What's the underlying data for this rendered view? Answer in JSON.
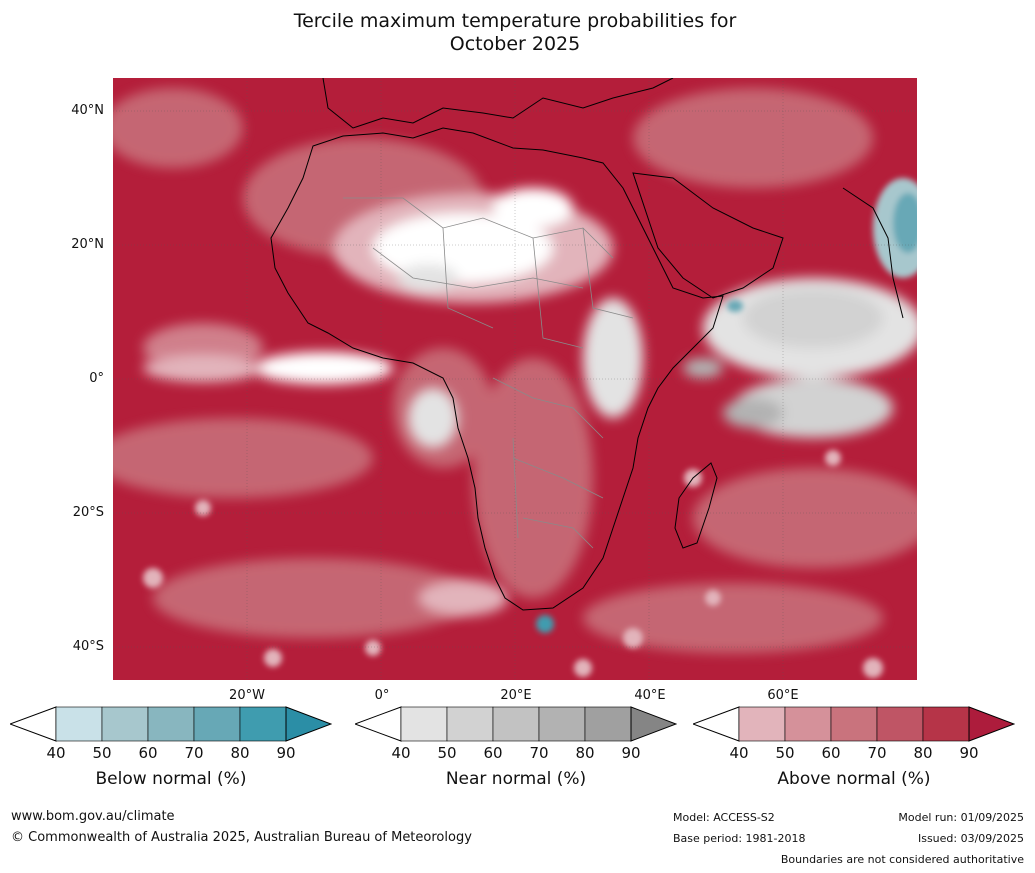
{
  "title": {
    "line1": "Tercile maximum temperature probabilities for",
    "line2": "October 2025"
  },
  "map": {
    "lat_labels": [
      "40°N",
      "20°N",
      "0°",
      "20°S",
      "40°S"
    ],
    "lon_labels": [
      "20°W",
      "0°",
      "20°E",
      "40°E",
      "60°E"
    ],
    "dominant_color": "#b41e3a"
  },
  "colorbars": [
    {
      "title": "Below normal (%)",
      "ticks": [
        "40",
        "50",
        "60",
        "70",
        "80",
        "90"
      ],
      "colors": [
        "#ffffff",
        "#c9e1e8",
        "#a7c7cd",
        "#88b6bf",
        "#67a8b6",
        "#3f9caf",
        "#2b8ea6"
      ]
    },
    {
      "title": "Near normal (%)",
      "ticks": [
        "40",
        "50",
        "60",
        "70",
        "80",
        "90"
      ],
      "colors": [
        "#ffffff",
        "#e3e3e3",
        "#d2d2d2",
        "#c2c2c2",
        "#b2b2b2",
        "#a0a0a0",
        "#858585"
      ]
    },
    {
      "title": "Above normal (%)",
      "ticks": [
        "40",
        "50",
        "60",
        "70",
        "80",
        "90"
      ],
      "colors": [
        "#ffffff",
        "#e2b4bb",
        "#d5919a",
        "#c9737d",
        "#bf5565",
        "#b63448",
        "#ad1c3c"
      ]
    }
  ],
  "footer": {
    "url": "www.bom.gov.au/climate",
    "copyright": "© Commonwealth of Australia 2025, Australian Bureau of Meteorology",
    "model": "Model: ACCESS-S2",
    "base_period": "Base period: 1981-2018",
    "model_run": "Model run: 01/09/2025",
    "issued": "Issued: 03/09/2025",
    "disclaimer": "Boundaries are not considered authoritative"
  }
}
